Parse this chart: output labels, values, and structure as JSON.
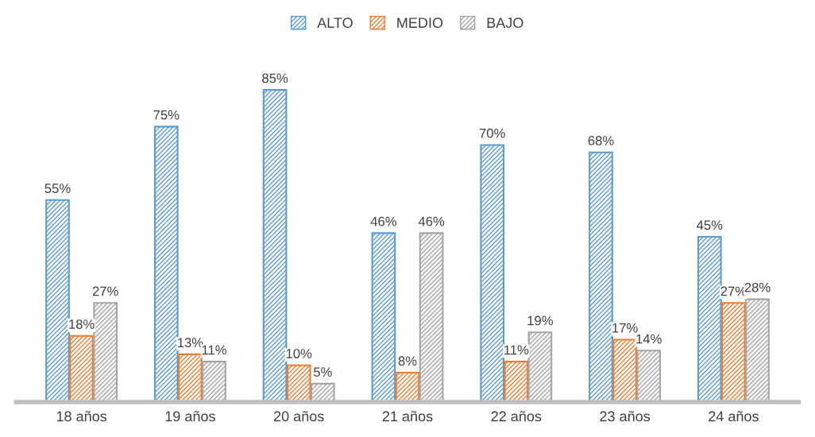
{
  "chart_data": {
    "type": "bar",
    "categories": [
      "18 años",
      "19 años",
      "20 años",
      "21 años",
      "22 años",
      "23 años",
      "24 años"
    ],
    "series": [
      {
        "name": "ALTO",
        "color": "#5b9bd5",
        "values": [
          55,
          75,
          85,
          46,
          70,
          68,
          45
        ],
        "value_labels": [
          "55%",
          "75%",
          "85%",
          "46%",
          "70%",
          "68%",
          "45%"
        ]
      },
      {
        "name": "MEDIO",
        "color": "#ed7d31",
        "values": [
          18,
          13,
          10,
          8,
          11,
          17,
          27
        ],
        "value_labels": [
          "18%",
          "13%",
          "10%",
          "8%",
          "11%",
          "17%",
          "27%"
        ]
      },
      {
        "name": "BAJO",
        "color": "#a5a5a5",
        "values": [
          27,
          11,
          5,
          46,
          19,
          14,
          28
        ],
        "value_labels": [
          "27%",
          "11%",
          "5%",
          "46%",
          "19%",
          "14%",
          "28%"
        ]
      }
    ],
    "legend": "top",
    "grid": false
  }
}
